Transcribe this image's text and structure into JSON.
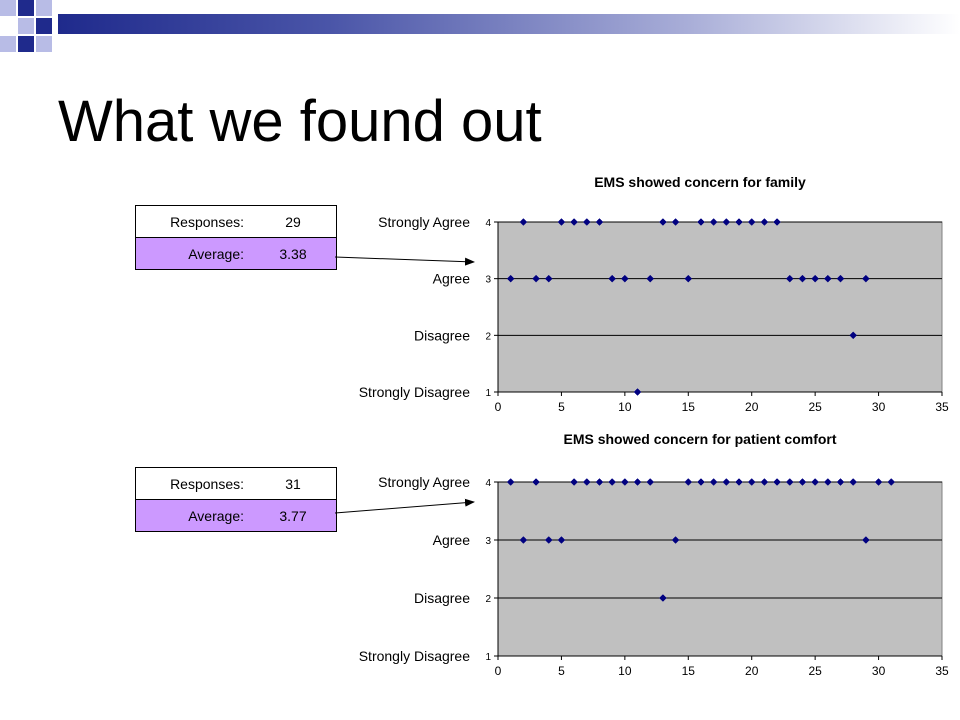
{
  "slide": {
    "title": "What we found out"
  },
  "stats": [
    {
      "responses_label": "Responses:",
      "responses_value": "29",
      "average_label": "Average:",
      "average_value": "3.38"
    },
    {
      "responses_label": "Responses:",
      "responses_value": "31",
      "average_label": "Average:",
      "average_value": "3.77"
    }
  ],
  "colors": {
    "plot_bg": "#c0c0c0",
    "marker": "#000080",
    "highlight": "#cc99ff",
    "deco_blue": "#1f2a8c",
    "deco_lavender": "#b8bce6"
  },
  "chart_data": [
    {
      "type": "scatter",
      "title": "EMS showed concern for family",
      "xlim": [
        0,
        35
      ],
      "ylim": [
        1,
        4
      ],
      "x_ticks": [
        0,
        5,
        10,
        15,
        20,
        25,
        30,
        35
      ],
      "y_ticks": [
        1,
        2,
        3,
        4
      ],
      "y_category_labels": [
        "Strongly Disagree",
        "Disagree",
        "Agree",
        "Strongly Agree"
      ],
      "grid": "horizontal",
      "points": [
        [
          1,
          3
        ],
        [
          2,
          4
        ],
        [
          3,
          3
        ],
        [
          4,
          3
        ],
        [
          5,
          4
        ],
        [
          6,
          4
        ],
        [
          7,
          4
        ],
        [
          8,
          4
        ],
        [
          9,
          3
        ],
        [
          10,
          3
        ],
        [
          11,
          1
        ],
        [
          12,
          3
        ],
        [
          13,
          4
        ],
        [
          14,
          4
        ],
        [
          15,
          3
        ],
        [
          16,
          4
        ],
        [
          17,
          4
        ],
        [
          18,
          4
        ],
        [
          19,
          4
        ],
        [
          20,
          4
        ],
        [
          21,
          4
        ],
        [
          22,
          4
        ],
        [
          23,
          3
        ],
        [
          24,
          3
        ],
        [
          25,
          3
        ],
        [
          26,
          3
        ],
        [
          27,
          3
        ],
        [
          28,
          2
        ],
        [
          29,
          3
        ]
      ]
    },
    {
      "type": "scatter",
      "title": "EMS showed concern for patient comfort",
      "xlim": [
        0,
        35
      ],
      "ylim": [
        1,
        4
      ],
      "x_ticks": [
        0,
        5,
        10,
        15,
        20,
        25,
        30,
        35
      ],
      "y_ticks": [
        1,
        2,
        3,
        4
      ],
      "y_category_labels": [
        "Strongly Disagree",
        "Disagree",
        "Agree",
        "Strongly Agree"
      ],
      "grid": "horizontal",
      "points": [
        [
          1,
          4
        ],
        [
          2,
          3
        ],
        [
          3,
          4
        ],
        [
          4,
          3
        ],
        [
          5,
          3
        ],
        [
          6,
          4
        ],
        [
          7,
          4
        ],
        [
          8,
          4
        ],
        [
          9,
          4
        ],
        [
          10,
          4
        ],
        [
          11,
          4
        ],
        [
          12,
          4
        ],
        [
          13,
          2
        ],
        [
          14,
          3
        ],
        [
          15,
          4
        ],
        [
          16,
          4
        ],
        [
          17,
          4
        ],
        [
          18,
          4
        ],
        [
          19,
          4
        ],
        [
          20,
          4
        ],
        [
          21,
          4
        ],
        [
          22,
          4
        ],
        [
          23,
          4
        ],
        [
          24,
          4
        ],
        [
          25,
          4
        ],
        [
          26,
          4
        ],
        [
          27,
          4
        ],
        [
          28,
          4
        ],
        [
          29,
          3
        ],
        [
          30,
          4
        ],
        [
          31,
          4
        ]
      ]
    }
  ]
}
